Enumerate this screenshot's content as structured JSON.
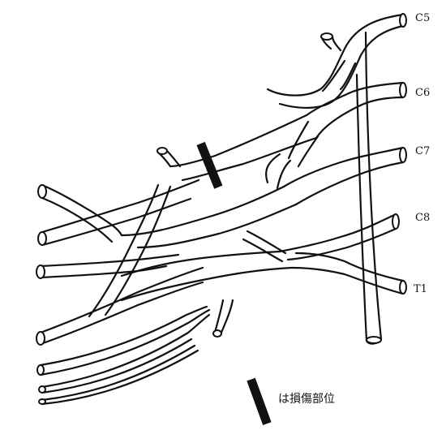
{
  "roots": [
    {
      "id": "c5",
      "label": "C5"
    },
    {
      "id": "c6",
      "label": "C6"
    },
    {
      "id": "c7",
      "label": "C7"
    },
    {
      "id": "c8",
      "label": "C8"
    },
    {
      "id": "t1",
      "label": "T1"
    }
  ],
  "legend": {
    "text": "は損傷部位"
  },
  "colors": {
    "line": "#111111",
    "marker": "#111111",
    "background": "#ffffff"
  }
}
